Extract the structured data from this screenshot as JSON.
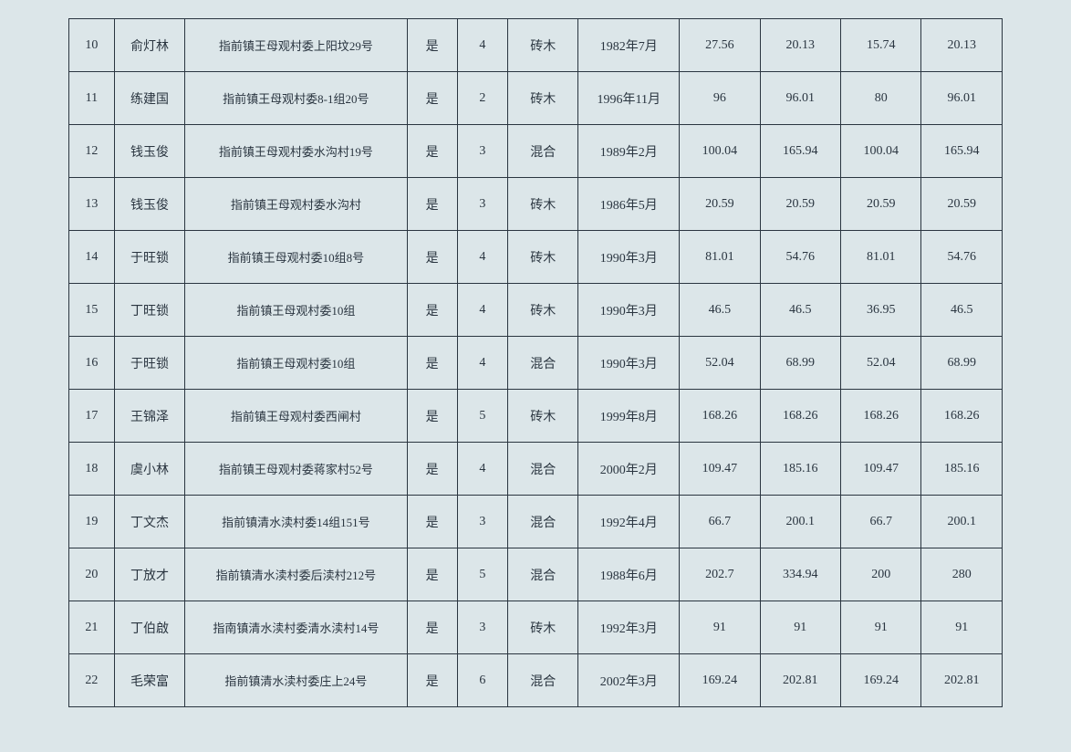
{
  "table": {
    "background_color": "#dce6e9",
    "border_color": "#2a3540",
    "text_color": "#2a3540",
    "font_family": "SimSun",
    "cell_fontsize": 14,
    "column_widths_pct": [
      4.5,
      7,
      22,
      5,
      5,
      7,
      10,
      8,
      8,
      8,
      8
    ],
    "rows": [
      [
        "10",
        "俞灯林",
        "指前镇王母观村委上阳坟29号",
        "是",
        "4",
        "砖木",
        "1982年7月",
        "27.56",
        "20.13",
        "15.74",
        "20.13"
      ],
      [
        "11",
        "练建国",
        "指前镇王母观村委8-1组20号",
        "是",
        "2",
        "砖木",
        "1996年11月",
        "96",
        "96.01",
        "80",
        "96.01"
      ],
      [
        "12",
        "钱玉俊",
        "指前镇王母观村委水沟村19号",
        "是",
        "3",
        "混合",
        "1989年2月",
        "100.04",
        "165.94",
        "100.04",
        "165.94"
      ],
      [
        "13",
        "钱玉俊",
        "指前镇王母观村委水沟村",
        "是",
        "3",
        "砖木",
        "1986年5月",
        "20.59",
        "20.59",
        "20.59",
        "20.59"
      ],
      [
        "14",
        "于旺锁",
        "指前镇王母观村委10组8号",
        "是",
        "4",
        "砖木",
        "1990年3月",
        "81.01",
        "54.76",
        "81.01",
        "54.76"
      ],
      [
        "15",
        "丁旺锁",
        "指前镇王母观村委10组",
        "是",
        "4",
        "砖木",
        "1990年3月",
        "46.5",
        "46.5",
        "36.95",
        "46.5"
      ],
      [
        "16",
        "于旺锁",
        "指前镇王母观村委10组",
        "是",
        "4",
        "混合",
        "1990年3月",
        "52.04",
        "68.99",
        "52.04",
        "68.99"
      ],
      [
        "17",
        "王锦泽",
        "指前镇王母观村委西闸村",
        "是",
        "5",
        "砖木",
        "1999年8月",
        "168.26",
        "168.26",
        "168.26",
        "168.26"
      ],
      [
        "18",
        "虞小林",
        "指前镇王母观村委蒋家村52号",
        "是",
        "4",
        "混合",
        "2000年2月",
        "109.47",
        "185.16",
        "109.47",
        "185.16"
      ],
      [
        "19",
        "丁文杰",
        "指前镇清水渎村委14组151号",
        "是",
        "3",
        "混合",
        "1992年4月",
        "66.7",
        "200.1",
        "66.7",
        "200.1"
      ],
      [
        "20",
        "丁放才",
        "指前镇清水渎村委后渎村212号",
        "是",
        "5",
        "混合",
        "1988年6月",
        "202.7",
        "334.94",
        "200",
        "280"
      ],
      [
        "21",
        "丁伯啟",
        "指南镇清水渎村委清水渎村14号",
        "是",
        "3",
        "砖木",
        "1992年3月",
        "91",
        "91",
        "91",
        "91"
      ],
      [
        "22",
        "毛荣富",
        "指前镇清水渎村委庄上24号",
        "是",
        "6",
        "混合",
        "2002年3月",
        "169.24",
        "202.81",
        "169.24",
        "202.81"
      ]
    ]
  }
}
